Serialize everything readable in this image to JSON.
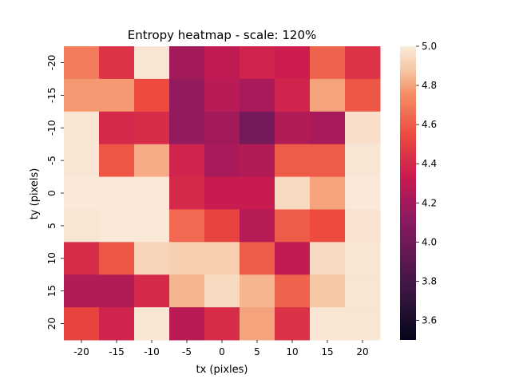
{
  "chart_data": {
    "type": "heatmap",
    "title": "Entropy heatmap - scale: 120%",
    "xlabel": "tx (pixles)",
    "ylabel": "ty (pixels)",
    "x_categories": [
      "-20",
      "-15",
      "-10",
      "-5",
      "0",
      "5",
      "10",
      "15",
      "20"
    ],
    "y_categories": [
      "-20",
      "-15",
      "-10",
      "-5",
      "0",
      "5",
      "10",
      "15",
      "20"
    ],
    "values": [
      [
        4.7,
        4.45,
        4.98,
        4.2,
        4.3,
        4.38,
        4.35,
        4.62,
        4.45
      ],
      [
        4.78,
        4.78,
        4.55,
        4.15,
        4.28,
        4.22,
        4.38,
        4.8,
        4.58
      ],
      [
        4.98,
        4.4,
        4.42,
        4.15,
        4.2,
        4.02,
        4.25,
        4.22,
        4.96
      ],
      [
        4.98,
        4.58,
        4.82,
        4.38,
        4.22,
        4.25,
        4.6,
        4.6,
        4.98
      ],
      [
        4.99,
        4.99,
        4.99,
        4.4,
        4.33,
        4.33,
        4.94,
        4.8,
        4.99
      ],
      [
        4.98,
        4.99,
        4.99,
        4.64,
        4.52,
        4.27,
        4.6,
        4.55,
        4.97
      ],
      [
        4.42,
        4.58,
        4.92,
        4.9,
        4.9,
        4.6,
        4.31,
        4.94,
        4.98
      ],
      [
        4.25,
        4.25,
        4.4,
        4.84,
        4.94,
        4.84,
        4.62,
        4.88,
        4.98
      ],
      [
        4.52,
        4.38,
        4.98,
        4.28,
        4.42,
        4.8,
        4.44,
        4.98,
        4.98
      ]
    ],
    "vmin": 3.5,
    "vmax": 5.0,
    "colorbar_ticks": [
      "3.6",
      "3.8",
      "4.0",
      "4.2",
      "4.4",
      "4.6",
      "4.8",
      "5.0"
    ],
    "colormap": "rocket",
    "grid": false
  }
}
